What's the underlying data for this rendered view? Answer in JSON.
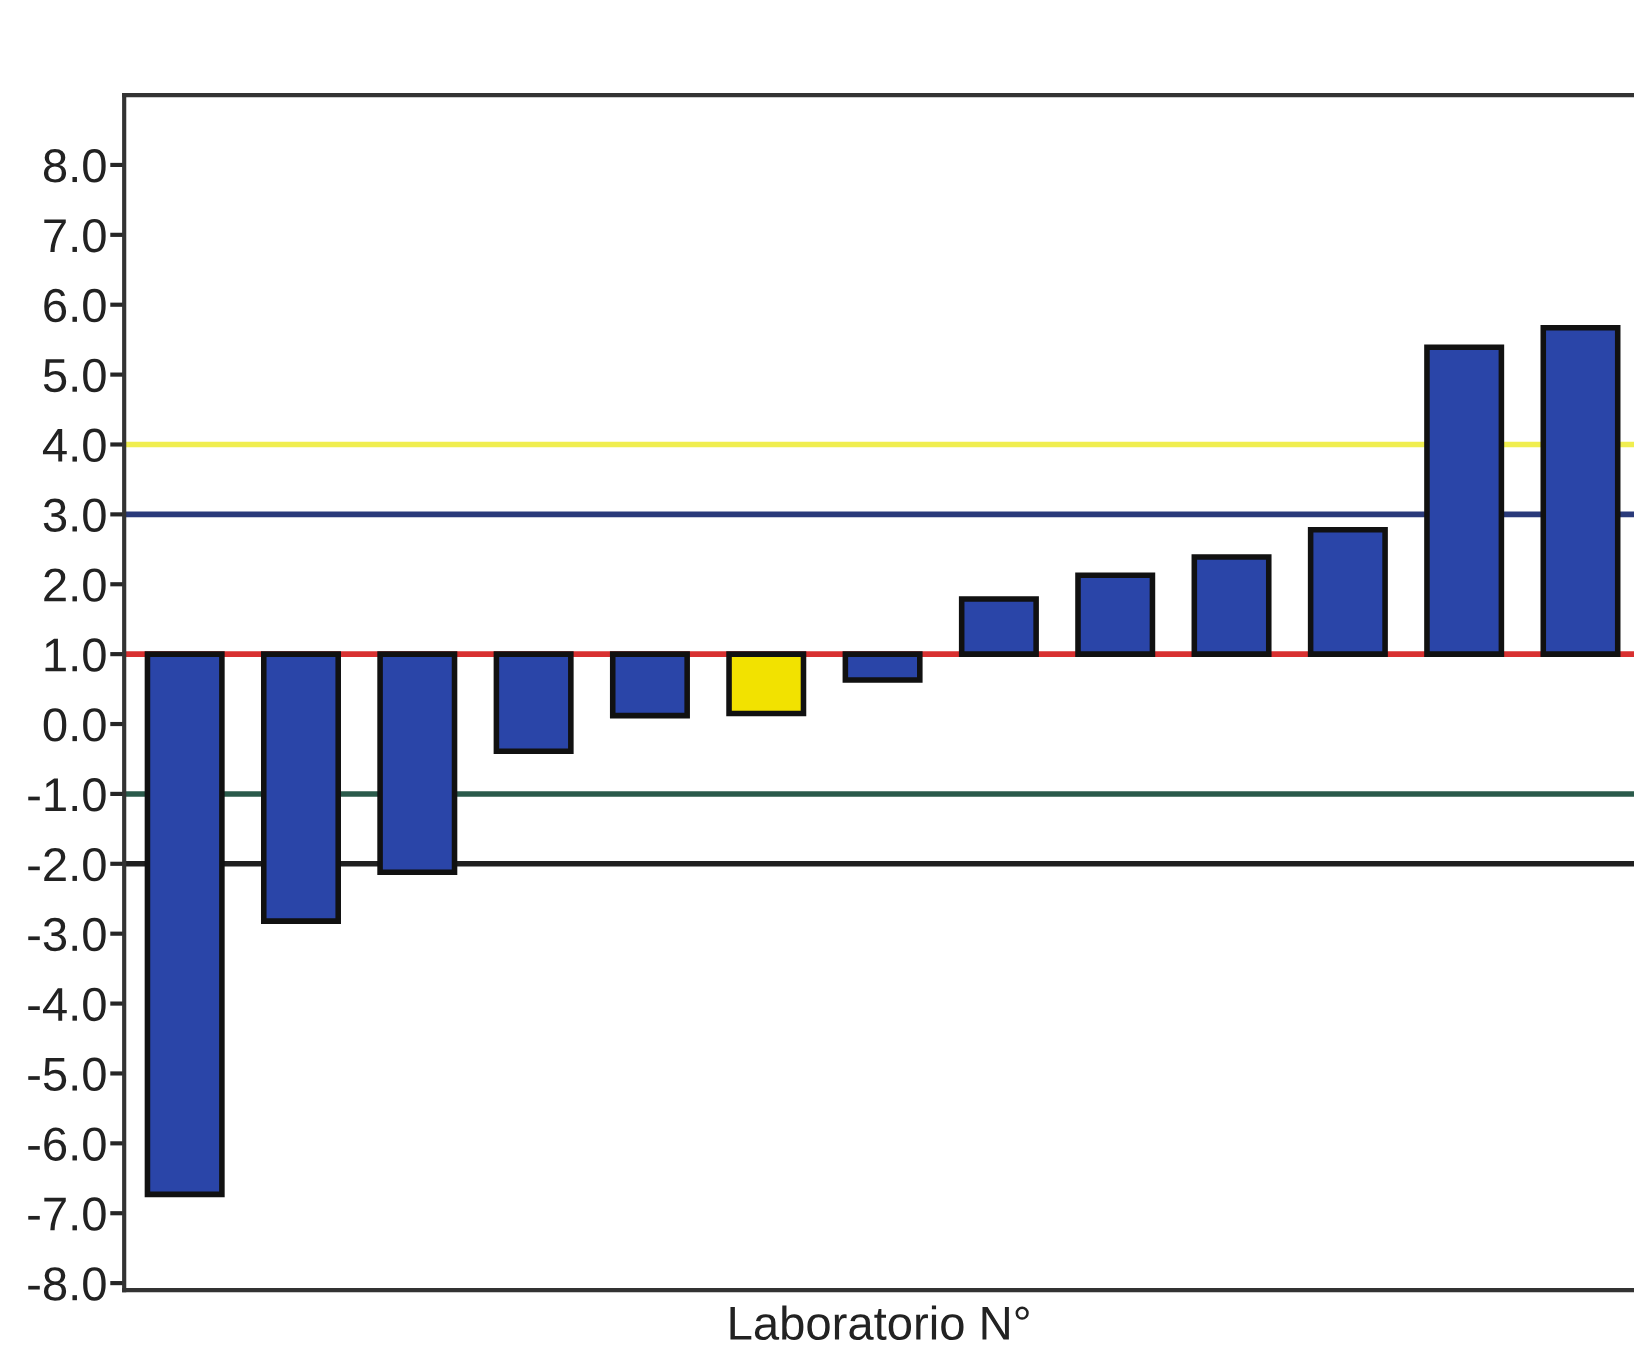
{
  "chart_data": {
    "type": "bar",
    "xlabel": "Laboratorio N°",
    "categories": [
      null,
      null,
      null,
      null,
      null,
      null,
      null,
      null,
      null,
      null,
      null,
      null,
      null
    ],
    "values": [
      -7.73,
      -3.82,
      -3.12,
      -1.39,
      -0.88,
      -0.85,
      -0.37,
      0.79,
      1.13,
      1.39,
      1.78,
      4.39,
      4.67
    ],
    "base": [
      1,
      1,
      1,
      1,
      1,
      1,
      1,
      1,
      1,
      1,
      1,
      1,
      1
    ],
    "colors": [
      "#2a45a8",
      "#2a45a8",
      "#2a45a8",
      "#2a45a8",
      "#2a45a8",
      "#f2e200",
      "#2a45a8",
      "#2a45a8",
      "#2a45a8",
      "#2a45a8",
      "#2a45a8",
      "#2a45a8",
      "#2a45a8"
    ],
    "ylim": [
      -8.1,
      9.0
    ],
    "yticks": [
      {
        "value": 8,
        "label": "8.0"
      },
      {
        "value": 7,
        "label": "7.0"
      },
      {
        "value": 6,
        "label": "6.0"
      },
      {
        "value": 5,
        "label": "5.0"
      },
      {
        "value": 4,
        "label": "4.0"
      },
      {
        "value": 3,
        "label": "3.0"
      },
      {
        "value": 2,
        "label": "2.0"
      },
      {
        "value": 1,
        "label": "1.0"
      },
      {
        "value": 0,
        "label": "0.0"
      },
      {
        "value": -1,
        "label": "-1.0"
      },
      {
        "value": -2,
        "label": "-2.0"
      },
      {
        "value": -3,
        "label": "-3.0"
      },
      {
        "value": -4,
        "label": "-4.0"
      },
      {
        "value": -5,
        "label": "-5.0"
      },
      {
        "value": -6,
        "label": "-6.0"
      },
      {
        "value": -7,
        "label": "-7.0"
      },
      {
        "value": -8,
        "label": "-8.0"
      }
    ],
    "ref_lines": [
      {
        "axis": "y",
        "value": 4,
        "color": "#f0ee50"
      },
      {
        "axis": "y",
        "value": 3,
        "color": "#2a3a7a"
      },
      {
        "axis": "y",
        "value": 1,
        "color": "#d83030"
      },
      {
        "axis": "y",
        "value": -1,
        "color": "#2a5a4a"
      },
      {
        "axis": "y",
        "value": -2,
        "color": "#202020"
      }
    ],
    "grid": false,
    "legend": false
  }
}
